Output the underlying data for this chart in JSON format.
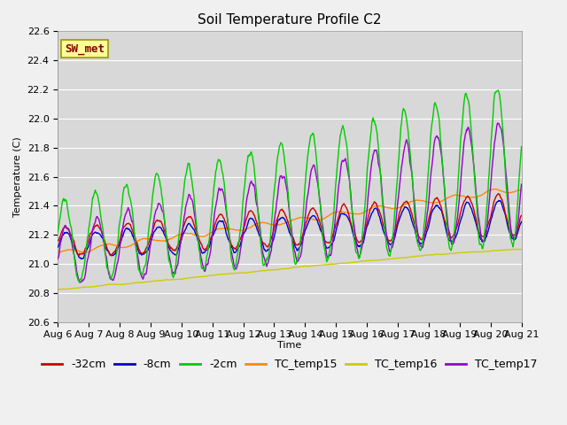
{
  "title": "Soil Temperature Profile C2",
  "xlabel": "Time",
  "ylabel": "Temperature (C)",
  "ylim": [
    20.6,
    22.6
  ],
  "date_labels": [
    "Aug 6",
    "Aug 7",
    "Aug 8",
    "Aug 9",
    "Aug 10",
    "Aug 11",
    "Aug 12",
    "Aug 13",
    "Aug 14",
    "Aug 15",
    "Aug 16",
    "Aug 17",
    "Aug 18",
    "Aug 19",
    "Aug 20",
    "Aug 21"
  ],
  "colors": {
    "neg32cm": "#cc0000",
    "neg8cm": "#0000cc",
    "neg2cm": "#00cc00",
    "TC_temp15": "#ff8800",
    "TC_temp16": "#cccc00",
    "TC_temp17": "#9900cc"
  },
  "legend_labels": [
    "-32cm",
    "-8cm",
    "-2cm",
    "TC_temp15",
    "TC_temp16",
    "TC_temp17"
  ],
  "sw_met_box_color": "#ffff99",
  "sw_met_text_color": "#880000",
  "fig_bg_color": "#f0f0f0",
  "plot_bg_color": "#d8d8d8",
  "title_fontsize": 11,
  "axis_fontsize": 8,
  "legend_fontsize": 9,
  "n_points": 720
}
